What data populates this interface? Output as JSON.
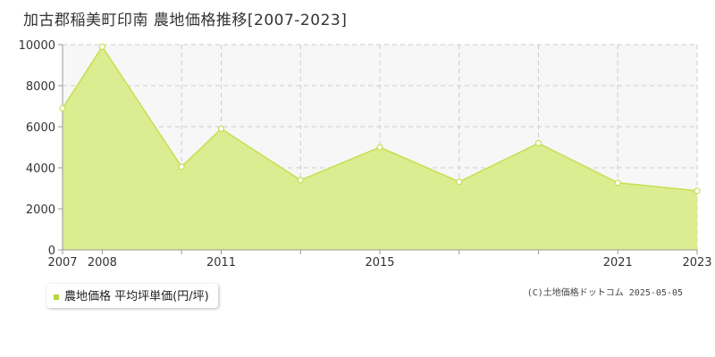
{
  "chart_title": "加古郡稲美町印南 農地価格推移[2007-2023]",
  "legend": {
    "label": "農地価格 平均坪単価(円/坪)"
  },
  "credit": "(C)土地価格ドットコム 2025-05-05",
  "colors": {
    "fill": "#dcec91",
    "line": "#c5e050",
    "marker_fill": "#ffffff",
    "legend_marker": "#b5d93a",
    "plot_bg": "#f7f7f7",
    "grid": "#cccccc",
    "axis": "#999999"
  },
  "chart_data": {
    "type": "area",
    "title": "加古郡稲美町印南 農地価格推移[2007-2023]",
    "xlabel": "",
    "ylabel": "",
    "x": [
      2007,
      2008,
      2010,
      2011,
      2013,
      2015,
      2017,
      2019,
      2021,
      2023
    ],
    "series": [
      {
        "name": "農地価格 平均坪単価(円/坪)",
        "values": [
          6900,
          9900,
          4050,
          5900,
          3400,
          5000,
          3320,
          5200,
          3270,
          2880
        ]
      }
    ],
    "x_ticks": [
      2007,
      2008,
      2011,
      2015,
      2021,
      2023
    ],
    "xlim": [
      2007,
      2023
    ],
    "ylim": [
      0,
      10000
    ],
    "y_ticks": [
      0,
      2000,
      4000,
      6000,
      8000,
      10000
    ],
    "grid": true
  }
}
